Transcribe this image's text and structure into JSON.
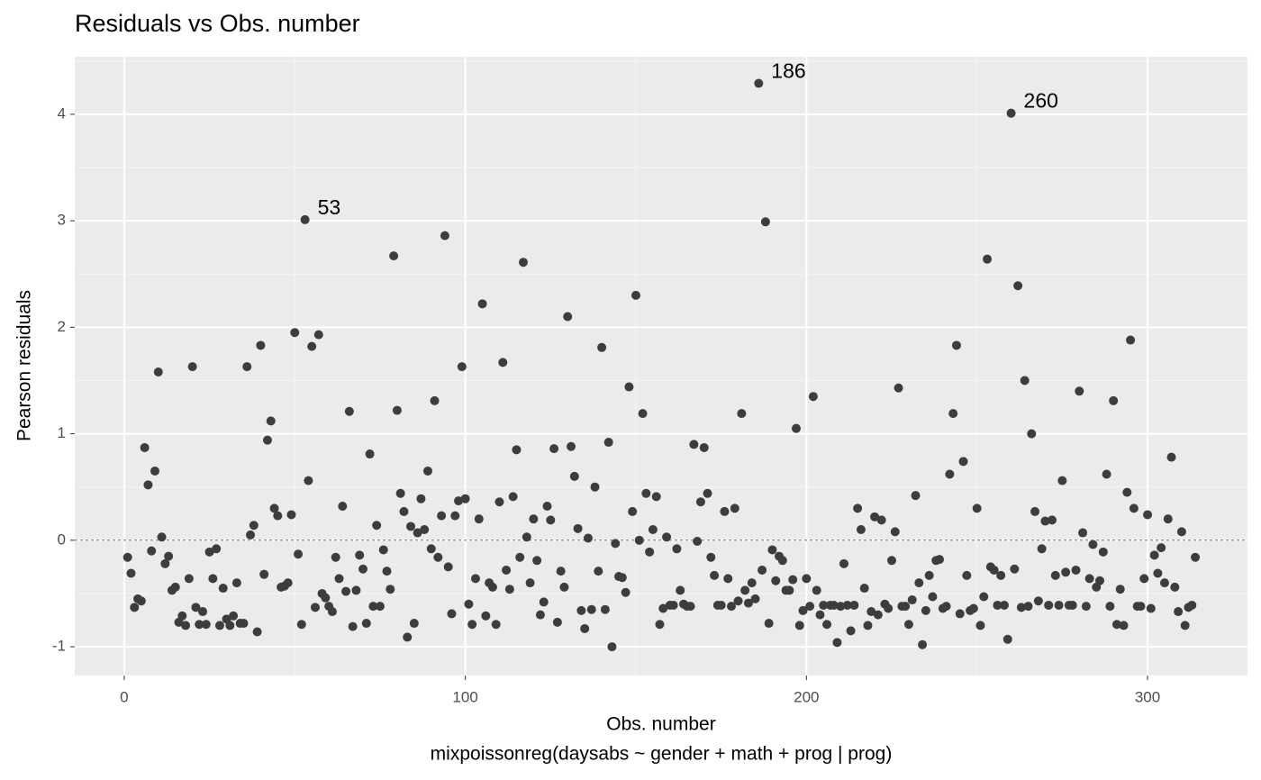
{
  "chart_data": {
    "type": "scatter",
    "title": "Residuals vs Obs. number",
    "x_label": "Obs. number",
    "caption": "mixpoissonreg(daysabs ~ gender + math + prog | prog)",
    "y_label": "Pearson residuals",
    "color": "#3d3d3d",
    "grid": true,
    "reference_line": 0,
    "xlim": [
      -14.5,
      329.3
    ],
    "ylim": [
      -1.27,
      4.54
    ],
    "xticks": [
      0,
      100,
      200,
      300
    ],
    "yticks": [
      -1,
      0,
      1,
      2,
      3,
      4
    ],
    "xticks_minor": [
      50,
      150,
      250
    ],
    "yticks_minor": [
      -0.5,
      0.5,
      1.5,
      2.5,
      3.5,
      4.5
    ],
    "annotations": [
      {
        "text": "53",
        "x": 53,
        "y": 3.01
      },
      {
        "text": "186",
        "x": 186,
        "y": 4.29
      },
      {
        "text": "260",
        "x": 260,
        "y": 4.01
      }
    ],
    "x": [
      1,
      2,
      3,
      4,
      5,
      6,
      7,
      8,
      9,
      10,
      11,
      12,
      13,
      14,
      15,
      16,
      17,
      18,
      19,
      20,
      21,
      22,
      23,
      24,
      25,
      26,
      27,
      28,
      29,
      30,
      31,
      32,
      33,
      34,
      35,
      36,
      37,
      38,
      39,
      40,
      41,
      42,
      43,
      44,
      45,
      46,
      47,
      48,
      49,
      50,
      51,
      52,
      53,
      54,
      55,
      56,
      57,
      58,
      59,
      60,
      61,
      62,
      63,
      64,
      65,
      66,
      67,
      68,
      69,
      70,
      71,
      72,
      73,
      74,
      75,
      76,
      77,
      78,
      79,
      80,
      81,
      82,
      83,
      84,
      85,
      86,
      87,
      88,
      89,
      90,
      91,
      92,
      93,
      94,
      95,
      96,
      97,
      98,
      99,
      100,
      101,
      102,
      103,
      104,
      105,
      106,
      107,
      108,
      109,
      110,
      111,
      112,
      113,
      114,
      115,
      116,
      117,
      118,
      119,
      120,
      121,
      122,
      123,
      124,
      125,
      126,
      127,
      128,
      129,
      130,
      131,
      132,
      133,
      134,
      135,
      136,
      137,
      138,
      139,
      140,
      141,
      142,
      143,
      144,
      145,
      146,
      147,
      148,
      149,
      150,
      151,
      152,
      153,
      154,
      155,
      156,
      157,
      158,
      159,
      160,
      161,
      162,
      163,
      164,
      165,
      166,
      167,
      168,
      169,
      170,
      171,
      172,
      173,
      174,
      175,
      176,
      177,
      178,
      179,
      180,
      181,
      182,
      183,
      184,
      185,
      186,
      187,
      188,
      189,
      190,
      191,
      192,
      193,
      194,
      195,
      196,
      197,
      198,
      199,
      200,
      201,
      202,
      203,
      204,
      205,
      206,
      207,
      208,
      209,
      210,
      211,
      212,
      213,
      214,
      215,
      216,
      217,
      218,
      219,
      220,
      221,
      222,
      223,
      224,
      225,
      226,
      227,
      228,
      229,
      230,
      231,
      232,
      233,
      234,
      235,
      236,
      237,
      238,
      239,
      240,
      241,
      242,
      243,
      244,
      245,
      246,
      247,
      248,
      249,
      250,
      251,
      252,
      253,
      254,
      255,
      256,
      257,
      258,
      259,
      260,
      261,
      262,
      263,
      264,
      265,
      266,
      267,
      268,
      269,
      270,
      271,
      272,
      273,
      274,
      275,
      276,
      277,
      278,
      279,
      280,
      281,
      282,
      283,
      284,
      285,
      286,
      287,
      288,
      289,
      290,
      291,
      292,
      293,
      294,
      295,
      296,
      297,
      298,
      299,
      300,
      301,
      302,
      303,
      304,
      305,
      306,
      307,
      308,
      309,
      310,
      311,
      312,
      313,
      314
    ],
    "values": [
      -0.16,
      -0.31,
      -0.63,
      -0.55,
      -0.57,
      0.87,
      0.52,
      -0.1,
      0.65,
      1.58,
      0.03,
      -0.22,
      -0.15,
      -0.47,
      -0.44,
      -0.77,
      -0.71,
      -0.8,
      -0.36,
      1.63,
      -0.63,
      -0.79,
      -0.67,
      -0.79,
      -0.11,
      -0.36,
      -0.08,
      -0.8,
      -0.45,
      -0.74,
      -0.8,
      -0.71,
      -0.4,
      -0.78,
      -0.78,
      1.63,
      0.05,
      0.14,
      -0.86,
      1.83,
      -0.32,
      0.94,
      1.12,
      0.3,
      0.23,
      -0.44,
      -0.43,
      -0.4,
      0.24,
      1.95,
      -0.13,
      -0.79,
      3.01,
      0.56,
      1.82,
      -0.63,
      1.93,
      -0.5,
      -0.54,
      -0.62,
      -0.67,
      -0.16,
      -0.36,
      0.32,
      -0.48,
      1.21,
      -0.81,
      -0.47,
      -0.14,
      -0.27,
      -0.78,
      0.81,
      -0.62,
      0.14,
      -0.62,
      -0.09,
      -0.29,
      -0.46,
      2.67,
      1.22,
      0.44,
      0.27,
      -0.91,
      0.13,
      -0.78,
      0.07,
      0.39,
      0.1,
      0.65,
      -0.08,
      1.31,
      -0.16,
      0.23,
      2.86,
      -0.25,
      -0.69,
      0.23,
      0.37,
      1.63,
      0.39,
      -0.6,
      -0.79,
      -0.36,
      0.2,
      2.22,
      -0.71,
      -0.4,
      -0.44,
      -0.79,
      0.36,
      1.67,
      -0.28,
      -0.46,
      0.41,
      0.85,
      -0.16,
      2.61,
      0.03,
      -0.4,
      0.2,
      -0.19,
      -0.7,
      -0.58,
      0.32,
      0.19,
      0.86,
      -0.77,
      -0.29,
      -0.44,
      2.1,
      0.88,
      0.6,
      0.11,
      -0.66,
      -0.83,
      0.02,
      -0.65,
      0.5,
      -0.29,
      1.81,
      -0.65,
      0.92,
      -1.0,
      -0.03,
      -0.34,
      -0.35,
      -0.49,
      1.44,
      0.27,
      2.3,
      0.0,
      1.19,
      0.44,
      -0.11,
      0.1,
      0.41,
      -0.79,
      -0.64,
      0.03,
      -0.61,
      -0.61,
      -0.08,
      -0.47,
      -0.6,
      -0.62,
      -0.62,
      0.9,
      -0.01,
      0.36,
      0.87,
      0.44,
      -0.16,
      -0.33,
      -0.61,
      -0.61,
      0.27,
      -0.36,
      -0.62,
      0.3,
      -0.57,
      1.19,
      -0.47,
      -0.59,
      -0.4,
      -0.55,
      4.29,
      -0.28,
      2.99,
      -0.78,
      -0.09,
      -0.38,
      -0.15,
      -0.19,
      -0.47,
      -0.47,
      -0.37,
      1.05,
      -0.8,
      -0.66,
      -0.36,
      -0.62,
      1.35,
      -0.47,
      -0.7,
      -0.61,
      -0.79,
      -0.61,
      -0.61,
      -0.96,
      -0.62,
      -0.22,
      -0.61,
      -0.85,
      -0.61,
      0.3,
      0.1,
      -0.45,
      -0.8,
      -0.67,
      0.22,
      -0.7,
      0.19,
      -0.6,
      -0.64,
      -0.19,
      0.08,
      1.43,
      -0.62,
      -0.62,
      -0.79,
      -0.56,
      0.42,
      -0.4,
      -0.98,
      -0.66,
      -0.33,
      -0.53,
      -0.19,
      -0.18,
      -0.64,
      -0.62,
      0.62,
      1.19,
      1.83,
      -0.69,
      0.74,
      -0.33,
      -0.66,
      -0.64,
      0.3,
      -0.8,
      -0.53,
      2.64,
      -0.25,
      -0.28,
      -0.61,
      -0.33,
      -0.61,
      -0.93,
      4.01,
      -0.27,
      2.39,
      -0.63,
      1.5,
      -0.62,
      1.0,
      0.27,
      -0.57,
      -0.08,
      0.18,
      -0.61,
      0.19,
      -0.33,
      -0.61,
      0.56,
      -0.3,
      -0.61,
      -0.61,
      -0.28,
      1.4,
      0.07,
      -0.62,
      -0.36,
      -0.04,
      -0.44,
      -0.38,
      -0.11,
      0.62,
      -0.62,
      1.31,
      -0.79,
      -0.46,
      -0.8,
      0.45,
      1.88,
      0.3,
      -0.62,
      -0.62,
      -0.36,
      0.24,
      -0.64,
      -0.14,
      -0.31,
      -0.07,
      -0.4,
      0.2,
      0.78,
      -0.44,
      -0.67,
      0.08,
      -0.8,
      -0.63,
      -0.61,
      -0.16
    ]
  }
}
